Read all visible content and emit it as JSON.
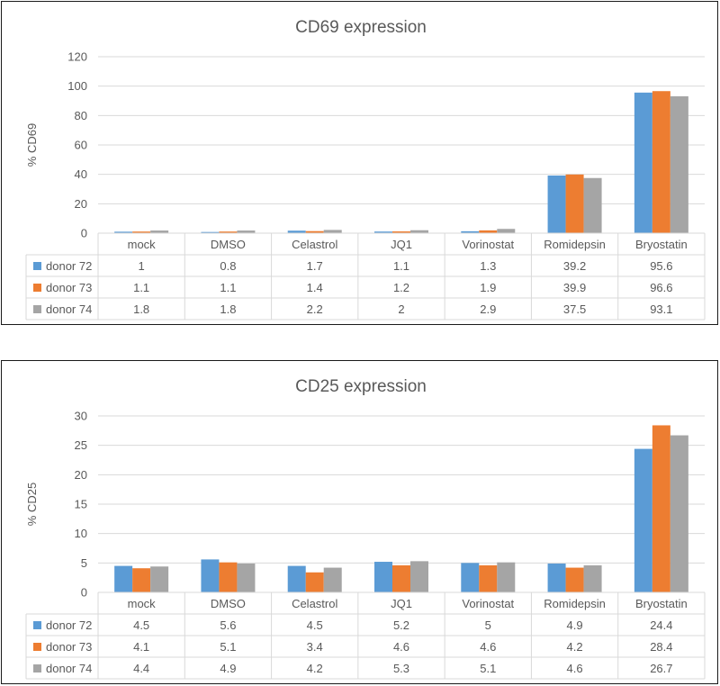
{
  "colors": {
    "donor_72": "#5b9bd5",
    "donor_73": "#ed7d31",
    "donor_74": "#a5a5a5",
    "grid": "#d9d9d9",
    "text": "#595959",
    "title": "#595959"
  },
  "chart_data": [
    {
      "type": "bar",
      "title": "CD69 expression",
      "ylabel": "% CD69",
      "xlabel": "",
      "ylim": [
        0,
        120
      ],
      "yticks": [
        0,
        20,
        40,
        60,
        80,
        100,
        120
      ],
      "grid": true,
      "legend": "data-table",
      "categories": [
        "mock",
        "DMSO",
        "Celastrol",
        "JQ1",
        "Vorinostat",
        "Romidepsin",
        "Bryostatin"
      ],
      "series": [
        {
          "name": "donor 72",
          "color": "#5b9bd5",
          "values": [
            1,
            0.8,
            1.7,
            1.1,
            1.3,
            39.2,
            95.6
          ]
        },
        {
          "name": "donor 73",
          "color": "#ed7d31",
          "values": [
            1.1,
            1.1,
            1.4,
            1.2,
            1.9,
            39.9,
            96.6
          ]
        },
        {
          "name": "donor 74",
          "color": "#a5a5a5",
          "values": [
            1.8,
            1.8,
            2.2,
            2,
            2.9,
            37.5,
            93.1
          ]
        }
      ]
    },
    {
      "type": "bar",
      "title": "CD25 expression",
      "ylabel": "% CD25",
      "xlabel": "",
      "ylim": [
        0,
        30
      ],
      "yticks": [
        0,
        5,
        10,
        15,
        20,
        25,
        30
      ],
      "grid": true,
      "legend": "data-table",
      "categories": [
        "mock",
        "DMSO",
        "Celastrol",
        "JQ1",
        "Vorinostat",
        "Romidepsin",
        "Bryostatin"
      ],
      "series": [
        {
          "name": "donor 72",
          "color": "#5b9bd5",
          "values": [
            4.5,
            5.6,
            4.5,
            5.2,
            5,
            4.9,
            24.4
          ]
        },
        {
          "name": "donor 73",
          "color": "#ed7d31",
          "values": [
            4.1,
            5.1,
            3.4,
            4.6,
            4.6,
            4.2,
            28.4
          ]
        },
        {
          "name": "donor 74",
          "color": "#a5a5a5",
          "values": [
            4.4,
            4.9,
            4.2,
            5.3,
            5.1,
            4.6,
            26.7
          ]
        }
      ]
    }
  ]
}
